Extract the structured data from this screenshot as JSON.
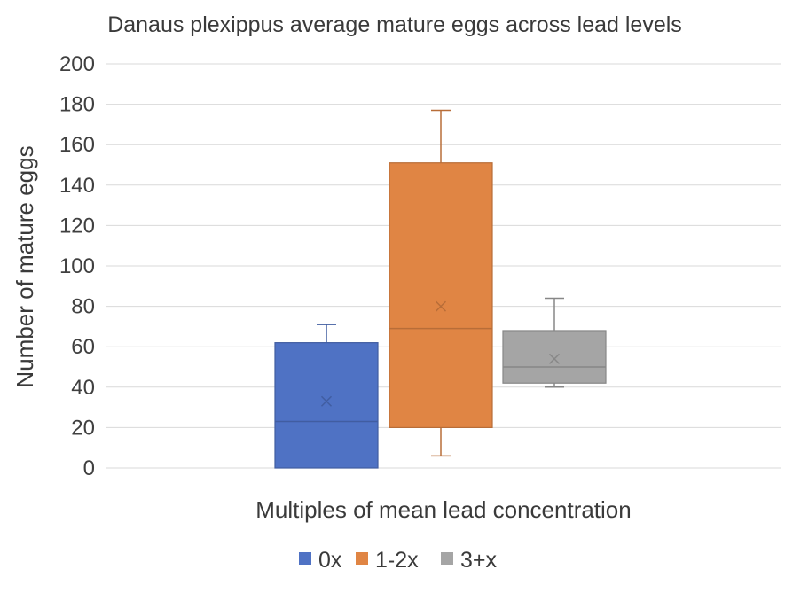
{
  "chart_data": {
    "type": "box",
    "title": "Danaus plexippus average mature eggs across lead levels",
    "xlabel": "Multiples of mean lead concentration",
    "ylabel": "Number of mature eggs",
    "ylim": [
      0,
      200
    ],
    "yticks": [
      0,
      20,
      40,
      60,
      80,
      100,
      120,
      140,
      160,
      180,
      200
    ],
    "grid": true,
    "legend_position": "bottom",
    "series": [
      {
        "name": "0x",
        "color": "#4f72c4",
        "min": 0,
        "q1": 0,
        "median": 23,
        "q3": 62,
        "max": 71,
        "mean": 33
      },
      {
        "name": "1-2x",
        "color": "#e08544",
        "min": 6,
        "q1": 20,
        "median": 69,
        "q3": 151,
        "max": 177,
        "mean": 80
      },
      {
        "name": "3+x",
        "color": "#a5a5a5",
        "min": 40,
        "q1": 42,
        "median": 50,
        "q3": 68,
        "max": 84,
        "mean": 54
      }
    ]
  }
}
